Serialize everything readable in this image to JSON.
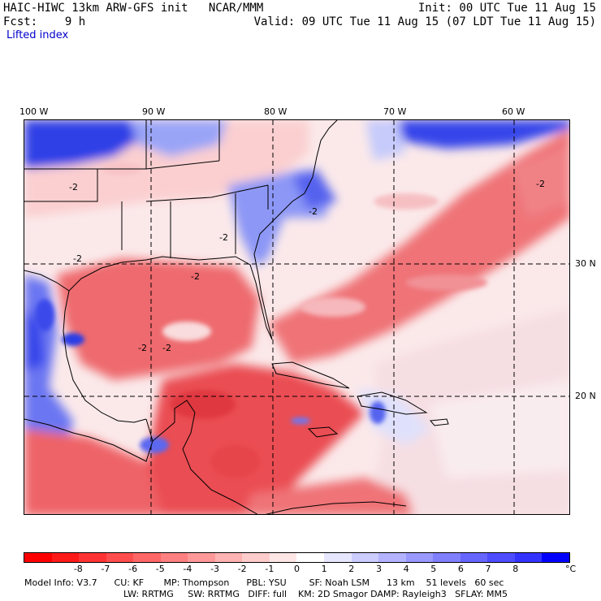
{
  "header": {
    "title": "HAIC-HIWC 13km ARW-GFS init   NCAR/MMM",
    "fcst": "Fcst:    9 h",
    "init": "Init: 00 UTC Tue 11 Aug 15",
    "valid": "Valid: 09 UTC Tue 11 Aug 15 (07 LDT Tue 11 Aug 15)",
    "field": "Lifted index"
  },
  "map": {
    "lon_labels": [
      "100 W",
      "90 W",
      "80 W",
      "70 W",
      "60 W"
    ],
    "lat_labels": [
      "30 N",
      "20 N"
    ],
    "contour_labels": [
      "-2",
      "-2",
      "-2",
      "-2",
      "-2",
      "-2",
      "-2",
      "-2"
    ]
  },
  "colorbar": {
    "colors": [
      "#ff0000",
      "#ff1a1a",
      "#ff3333",
      "#ff4d4d",
      "#ff6666",
      "#ff8080",
      "#ff9999",
      "#ffb3b3",
      "#ffcccc",
      "#ffe6e6",
      "#ffffff",
      "#e6e6ff",
      "#ccccff",
      "#b3b3ff",
      "#9999ff",
      "#8080ff",
      "#6666ff",
      "#4d4dff",
      "#3333ff",
      "#0000ff"
    ],
    "labels": [
      "-8",
      "-7",
      "-6",
      "-5",
      "-4",
      "-3",
      "-2",
      "-1",
      "0",
      "1",
      "2",
      "3",
      "4",
      "5",
      "6",
      "7",
      "8"
    ],
    "unit": "°C"
  },
  "model_info": {
    "line1": "Model Info: V3.7      CU: KF       MP: Thompson      PBL: YSU        SF: Noah LSM      13 km    51 levels   60 sec",
    "line2": "LW: RRTMG     SW: RRTMG   DIFF: full    KM: 2D Smagor DAMP: Rayleigh3   SFLAY: MM5"
  }
}
